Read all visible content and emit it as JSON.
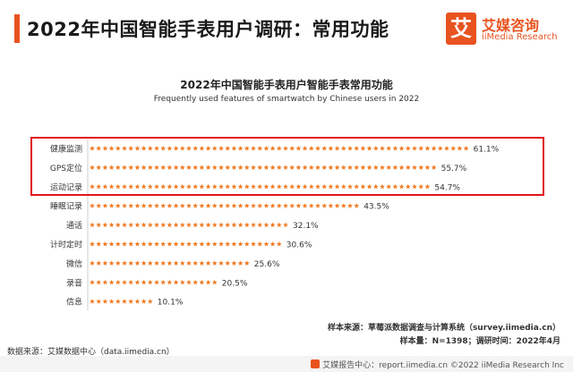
{
  "header": {
    "title": "2022年中国智能手表用户调研：常用功能",
    "brand_mark": "艾",
    "brand_name_cn": "艾媒咨询",
    "brand_name_en": "iiMedia Research"
  },
  "chart_data": {
    "type": "bar",
    "title": "2022年中国智能手表用户智能手表常用功能",
    "subtitle": "Frequently used features of smartwatch by Chinese users in 2022",
    "categories": [
      "健康监测",
      "GPS定位",
      "运动记录",
      "睡眠记录",
      "通话",
      "计时定时",
      "微信",
      "录音",
      "信息"
    ],
    "values": [
      61.1,
      55.7,
      54.7,
      43.5,
      32.1,
      30.6,
      25.6,
      20.5,
      10.1
    ],
    "value_labels": [
      "61.1%",
      "55.7%",
      "54.7%",
      "43.5%",
      "32.1%",
      "30.6%",
      "25.6%",
      "20.5%",
      "10.1%"
    ],
    "unit": "%",
    "mark": "star",
    "color": "#f07a22",
    "highlight": [
      "健康监测",
      "GPS定位",
      "运动记录"
    ],
    "highlight_color": "#e0141e",
    "grid": false,
    "legend": "none"
  },
  "notes": {
    "sample_source": "样本来源：草莓派数据调查与计算系统（survey.iimedia.cn）",
    "sample_size": "样本量：N=1398；调研时间：2022年4月",
    "data_source": "数据来源：艾媒数据中心（data.iimedia.cn）"
  },
  "footer": {
    "text": "艾媒报告中心：report.iimedia.cn ©2022 iiMedia Research Inc"
  }
}
